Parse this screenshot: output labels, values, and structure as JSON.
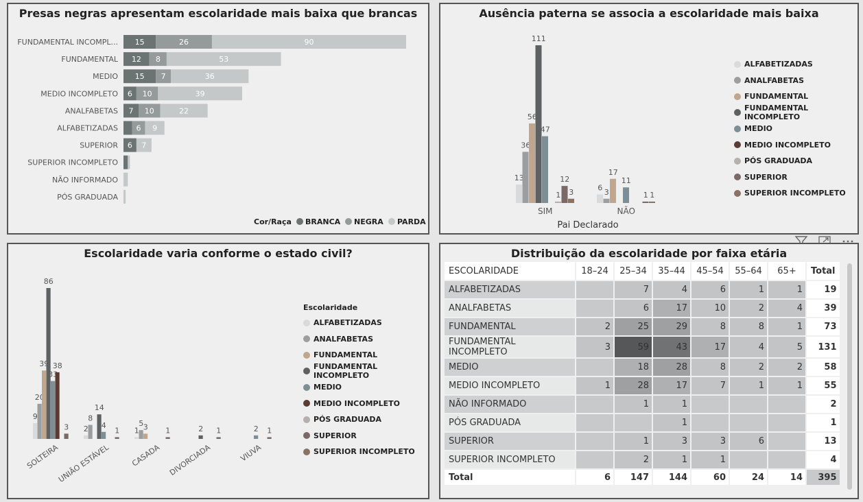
{
  "colors": {
    "branca": "#6b7373",
    "negra": "#959b9b",
    "parda": "#c5c8c8",
    "alfabetizadas": "#d9dadb",
    "analfabetas": "#9b9d9f",
    "fundamental": "#c0a68e",
    "fundamental_incompleto": "#5d6162",
    "medio": "#7e8e95",
    "medio_incompleto": "#5c3b33",
    "pos_graduada": "#b6b0ac",
    "superior": "#7a6966",
    "superior_incompleto": "#8a7265"
  },
  "panel1": {
    "title": "Presas negras apresentam escolaridade mais baixa que brancas",
    "legend_title": "Cor/Raça",
    "legend": [
      "BRANCA",
      "NEGRA",
      "PARDA"
    ]
  },
  "panel2": {
    "title": "Ausência paterna se associa a escolaridade mais baixa",
    "xlabel": "Pai Declarado"
  },
  "panel3": {
    "title": "Escolaridade varia conforme o estado civil?",
    "legend_title": "Escolaridade"
  },
  "panel4": {
    "title": "Distribuição da escolaridade por faixa etária",
    "row_header": "ESCOLARIDADE",
    "columns": [
      "18–24",
      "25–34",
      "35–44",
      "45–54",
      "55–64",
      "65+"
    ],
    "total_label": "Total",
    "rows": [
      {
        "label": "ALFABETIZADAS",
        "values": [
          "",
          "7",
          "4",
          "6",
          "1",
          "1"
        ],
        "total": "19"
      },
      {
        "label": "ANALFABETAS",
        "values": [
          "",
          "6",
          "17",
          "10",
          "2",
          "4"
        ],
        "total": "39"
      },
      {
        "label": "FUNDAMENTAL",
        "values": [
          "2",
          "25",
          "29",
          "8",
          "8",
          "1"
        ],
        "total": "73"
      },
      {
        "label": "FUNDAMENTAL INCOMPLETO",
        "values": [
          "3",
          "59",
          "43",
          "17",
          "4",
          "5"
        ],
        "total": "131"
      },
      {
        "label": "MEDIO",
        "values": [
          "",
          "18",
          "28",
          "8",
          "2",
          "2"
        ],
        "total": "58"
      },
      {
        "label": "MEDIO INCOMPLETO",
        "values": [
          "1",
          "28",
          "17",
          "7",
          "1",
          "1"
        ],
        "total": "55"
      },
      {
        "label": "NÃO INFORMADO",
        "values": [
          "",
          "1",
          "1",
          "",
          "",
          ""
        ],
        "total": "2"
      },
      {
        "label": "PÓS GRADUADA",
        "values": [
          "",
          "",
          "1",
          "",
          "",
          ""
        ],
        "total": "1"
      },
      {
        "label": "SUPERIOR",
        "values": [
          "",
          "1",
          "3",
          "3",
          "6",
          ""
        ],
        "total": "13"
      },
      {
        "label": "SUPERIOR INCOMPLETO",
        "values": [
          "",
          "2",
          "1",
          "1",
          "",
          ""
        ],
        "total": "4"
      }
    ],
    "totals_row": {
      "label": "Total",
      "values": [
        "6",
        "147",
        "144",
        "60",
        "24",
        "14"
      ],
      "total": "395"
    }
  },
  "toolbar": {
    "filter_icon": "filter-icon",
    "focus_icon": "focus-mode-icon",
    "more_icon": "more-options-icon"
  },
  "chart_data": [
    {
      "type": "bar",
      "orientation": "horizontal",
      "stacked": true,
      "title": "Presas negras apresentam escolaridade mais baixa que brancas",
      "categories": [
        "FUNDAMENTAL INCOMPL...",
        "FUNDAMENTAL",
        "MEDIO",
        "MEDIO INCOMPLETO",
        "ANALFABETAS",
        "ALFABETIZADAS",
        "SUPERIOR",
        "SUPERIOR INCOMPLETO",
        "NÃO INFORMADO",
        "PÓS GRADUADA"
      ],
      "series": [
        {
          "name": "BRANCA",
          "values": [
            15,
            12,
            15,
            6,
            7,
            4,
            6,
            2,
            0,
            0
          ]
        },
        {
          "name": "NEGRA",
          "values": [
            26,
            8,
            7,
            10,
            10,
            6,
            0,
            0,
            0,
            0
          ]
        },
        {
          "name": "PARDA",
          "values": [
            90,
            53,
            36,
            39,
            22,
            9,
            7,
            1,
            2,
            1
          ]
        }
      ],
      "legend_title": "Cor/Raça",
      "legend_position": "bottom-right",
      "grid": false
    },
    {
      "type": "bar",
      "title": "Ausência paterna se associa a escolaridade mais baixa",
      "xlabel": "Pai Declarado",
      "categories": [
        "SIM",
        "NÃO"
      ],
      "series": [
        {
          "name": "ALFABETIZADAS",
          "values": [
            13,
            6
          ]
        },
        {
          "name": "ANALFABETAS",
          "values": [
            36,
            3
          ]
        },
        {
          "name": "FUNDAMENTAL",
          "values": [
            56,
            17
          ]
        },
        {
          "name": "FUNDAMENTAL INCOMPLETO",
          "values": [
            111,
            null
          ]
        },
        {
          "name": "MEDIO",
          "values": [
            47,
            11
          ]
        },
        {
          "name": "MEDIO INCOMPLETO",
          "values": [
            null,
            null
          ]
        },
        {
          "name": "PÓS GRADUADA",
          "values": [
            1,
            null
          ]
        },
        {
          "name": "SUPERIOR",
          "values": [
            12,
            1
          ]
        },
        {
          "name": "SUPERIOR INCOMPLETO",
          "values": [
            3,
            1
          ]
        }
      ],
      "legend_position": "right",
      "grid": false
    },
    {
      "type": "bar",
      "title": "Escolaridade varia conforme o estado civil?",
      "categories": [
        "SOLTEIRA",
        "UNIÃO ESTÁVEL",
        "CASADA",
        "DIVORCIADA",
        "VIUVA"
      ],
      "series": [
        {
          "name": "ALFABETIZADAS",
          "values": [
            9,
            2,
            1,
            null,
            null
          ]
        },
        {
          "name": "ANALFABETAS",
          "values": [
            20,
            8,
            5,
            null,
            null
          ]
        },
        {
          "name": "FUNDAMENTAL",
          "values": [
            39,
            null,
            3,
            null,
            null
          ]
        },
        {
          "name": "FUNDAMENTAL INCOMPLETO",
          "values": [
            86,
            14,
            null,
            2,
            null
          ]
        },
        {
          "name": "MEDIO",
          "values": [
            33,
            4,
            null,
            null,
            2
          ]
        },
        {
          "name": "MEDIO INCOMPLETO",
          "values": [
            38,
            null,
            null,
            null,
            null
          ]
        },
        {
          "name": "PÓS GRADUADA",
          "values": [
            null,
            null,
            null,
            null,
            null
          ]
        },
        {
          "name": "SUPERIOR",
          "values": [
            3,
            1,
            1,
            1,
            1
          ]
        },
        {
          "name": "SUPERIOR INCOMPLETO",
          "values": [
            null,
            null,
            null,
            null,
            null
          ]
        }
      ],
      "legend_title": "Escolaridade",
      "legend_position": "right",
      "grid": false
    },
    {
      "type": "table",
      "title": "Distribuição da escolaridade por faixa etária"
    }
  ]
}
